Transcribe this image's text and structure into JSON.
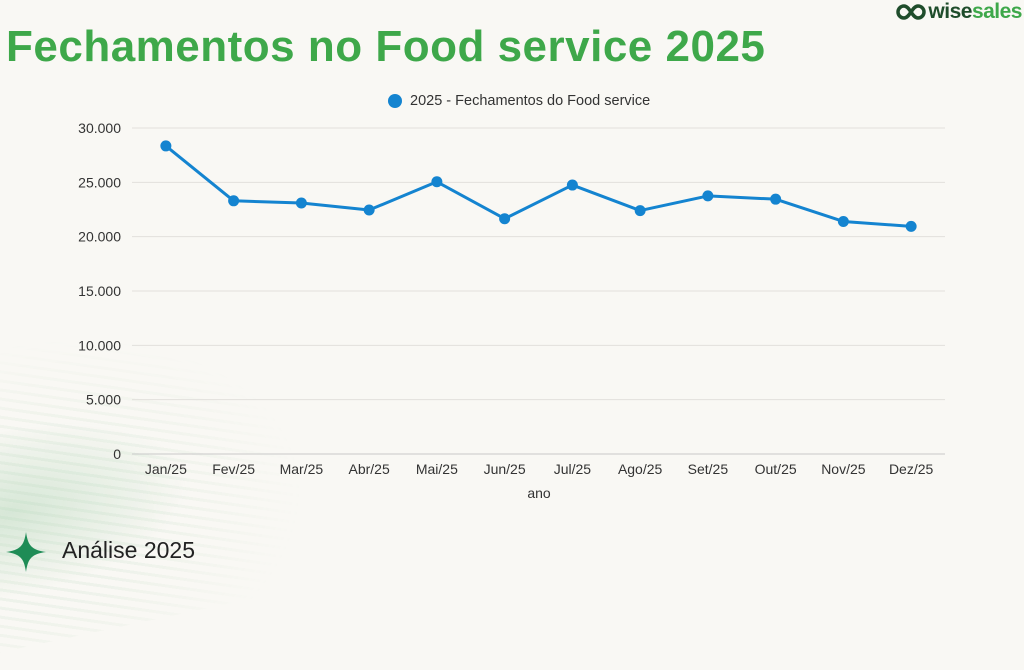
{
  "header": {
    "title": "Fechamentos no Food service 2025",
    "logo": {
      "icon": "infinity-icon",
      "part1": "wise",
      "part2": "sales"
    }
  },
  "footer": {
    "icon": "sparkle-star-icon",
    "label": "Análise 2025"
  },
  "colors": {
    "title": "#3ea84a",
    "series": "#1484d0",
    "accent_dark": "#1f4d2b",
    "star": "#1e8c56"
  },
  "chart_data": {
    "type": "line",
    "title": "",
    "xlabel": "ano",
    "ylabel": "",
    "categories": [
      "Jan/25",
      "Fev/25",
      "Mar/25",
      "Abr/25",
      "Mai/25",
      "Jun/25",
      "Jul/25",
      "Ago/25",
      "Set/25",
      "Out/25",
      "Nov/25",
      "Dez/25"
    ],
    "series": [
      {
        "name": "2025 - Fechamentos do Food service",
        "color": "#1484d0",
        "values": [
          28350,
          23300,
          23100,
          22450,
          25050,
          21650,
          24750,
          22400,
          23750,
          23450,
          21400,
          20950
        ]
      }
    ],
    "ylim": [
      0,
      30000
    ],
    "yticks": [
      0,
      5000,
      10000,
      15000,
      20000,
      25000,
      30000
    ],
    "ytick_labels": [
      "0",
      "5.000",
      "10.000",
      "15.000",
      "20.000",
      "25.000",
      "30.000"
    ],
    "grid": true,
    "legend_position": "top-center"
  }
}
